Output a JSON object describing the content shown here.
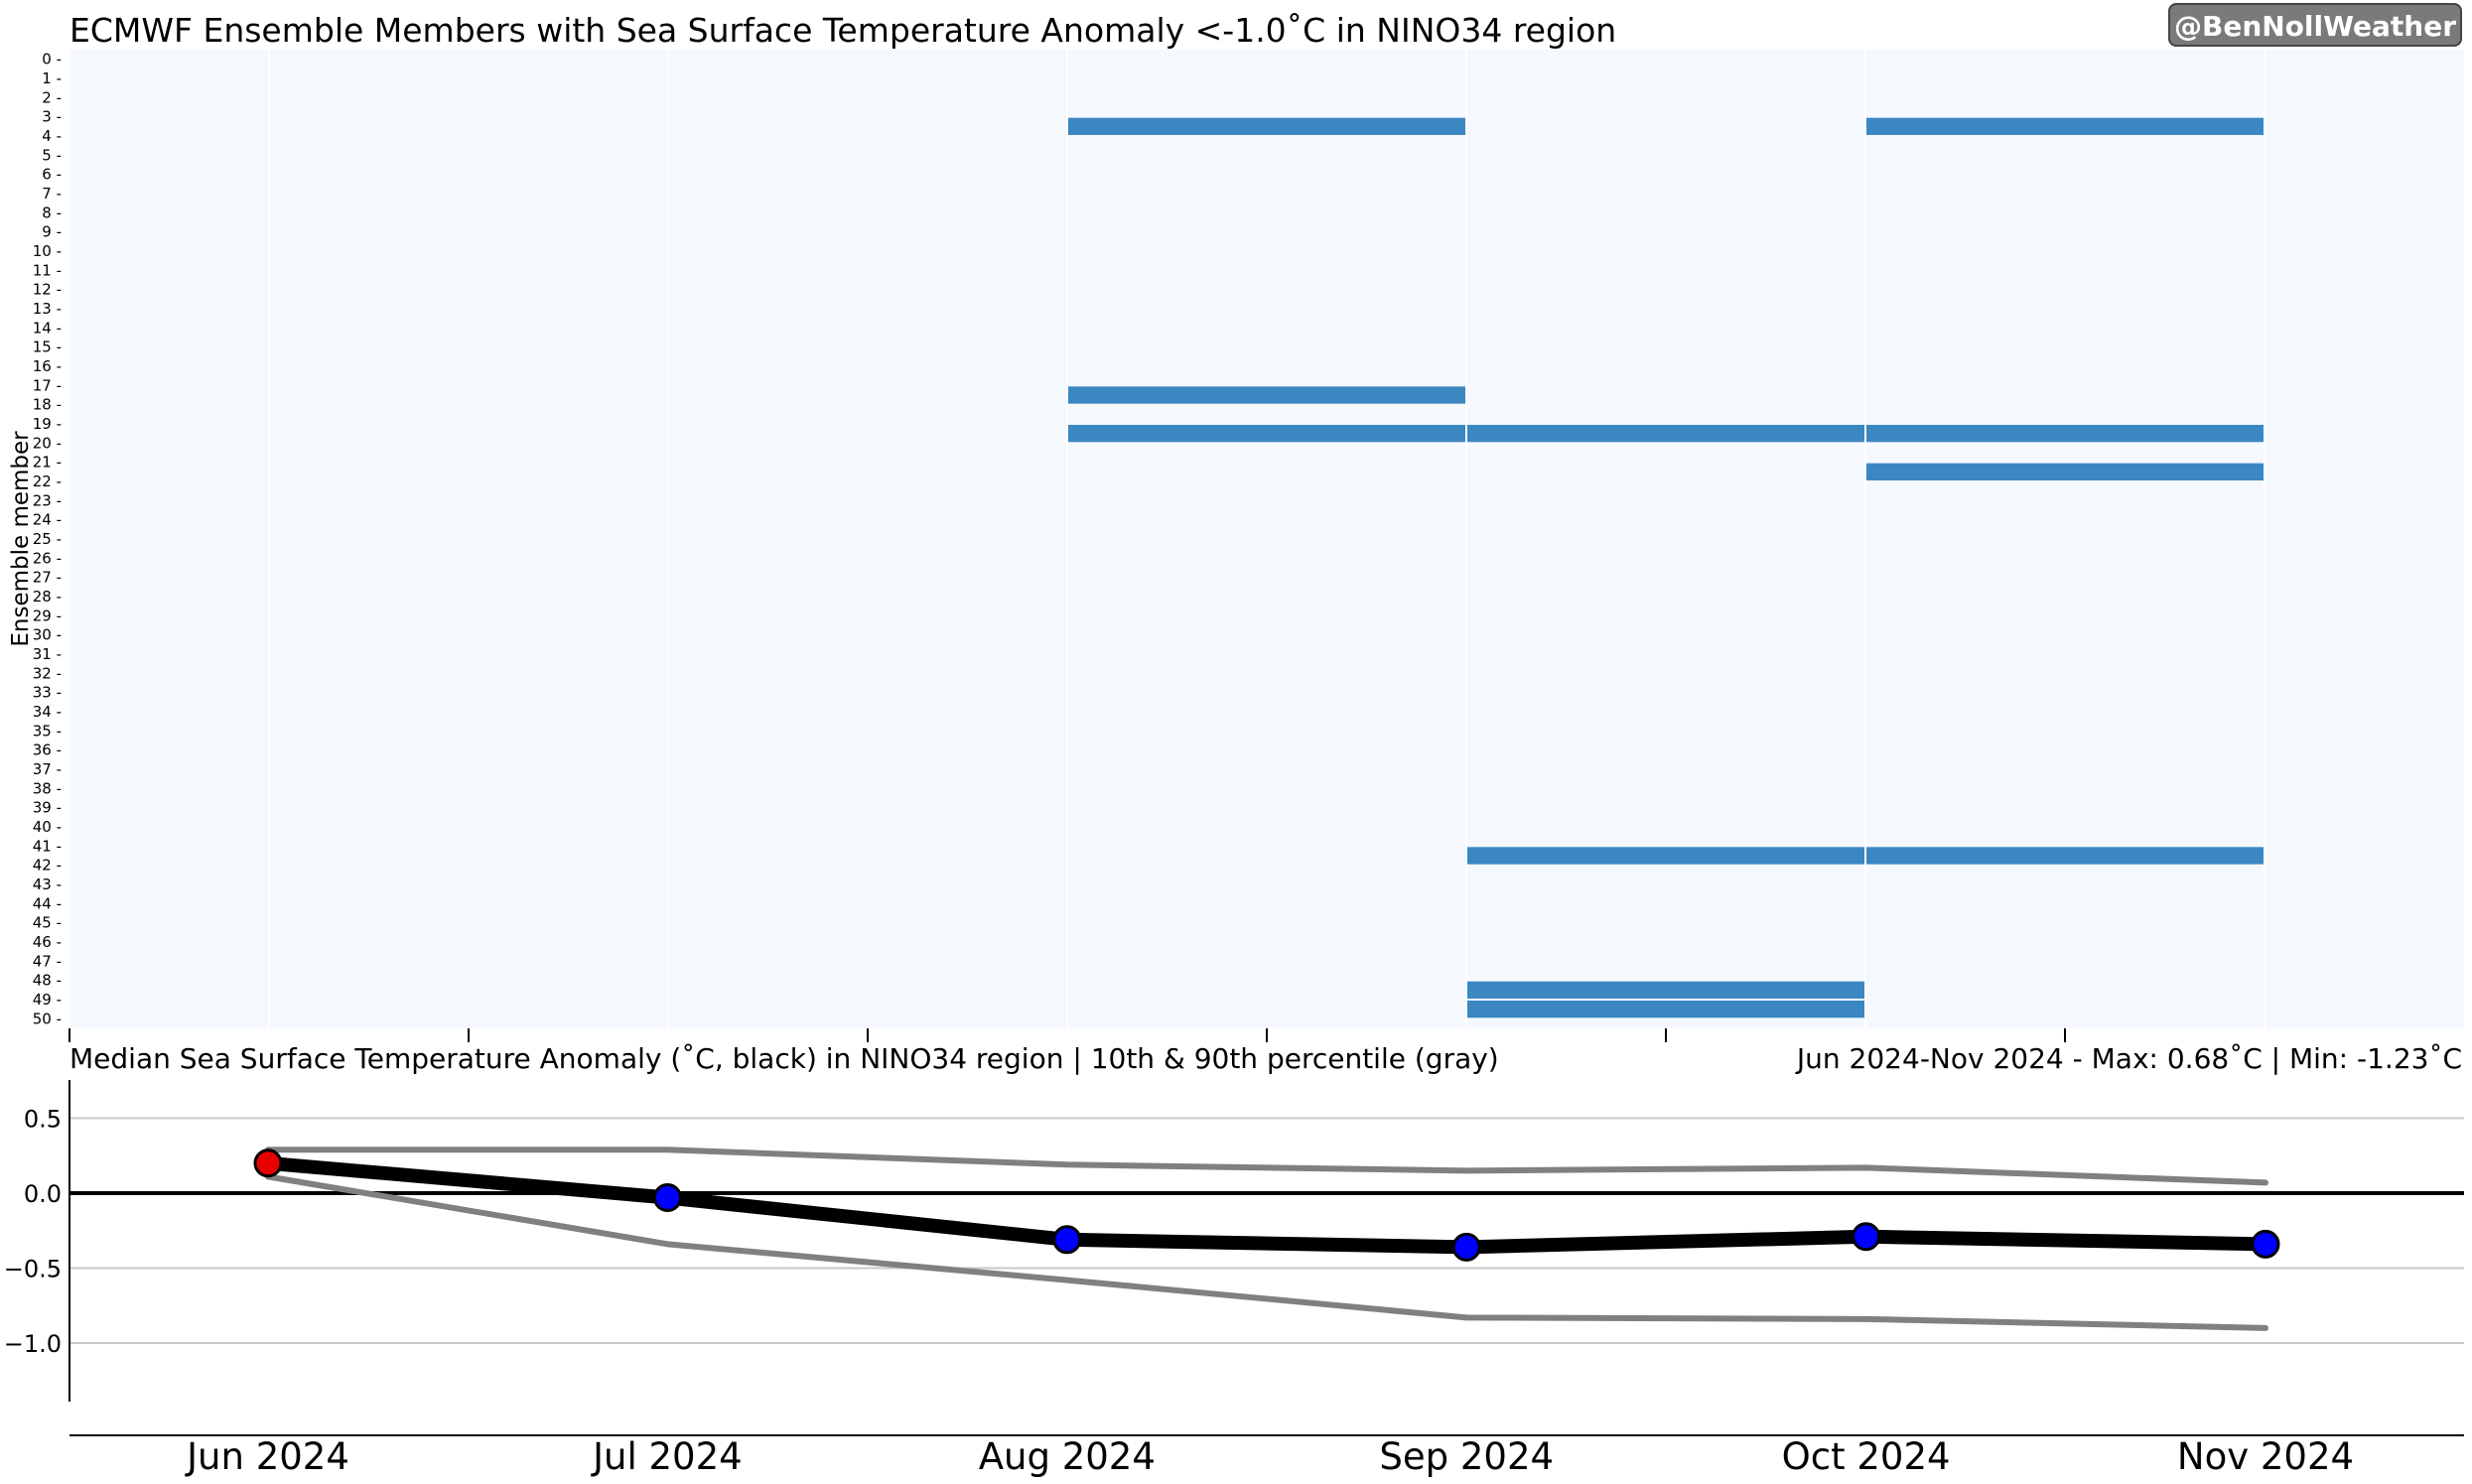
{
  "badge": "@BenNollWeather",
  "chart_data": [
    {
      "type": "heatmap",
      "title": "ECMWF Ensemble Members with Sea Surface Temperature Anomaly <-1.0˚C in NINO34 region",
      "ylabel": "Ensemble member",
      "categories": [
        "Jun 2024",
        "Jul 2024",
        "Aug 2024",
        "Sep 2024",
        "Oct 2024",
        "Nov 2024"
      ],
      "members": [
        0,
        1,
        2,
        3,
        4,
        5,
        6,
        7,
        8,
        9,
        10,
        11,
        12,
        13,
        14,
        15,
        16,
        17,
        18,
        19,
        20,
        21,
        22,
        23,
        24,
        25,
        26,
        27,
        28,
        29,
        30,
        31,
        32,
        33,
        34,
        35,
        36,
        37,
        38,
        39,
        40,
        41,
        42,
        43,
        44,
        45,
        46,
        47,
        48,
        49,
        50
      ],
      "highlighted": [
        {
          "member": 3,
          "months": [
            "Sep 2024",
            "Nov 2024"
          ]
        },
        {
          "member": 17,
          "months": [
            "Sep 2024"
          ]
        },
        {
          "member": 19,
          "months": [
            "Sep 2024",
            "Oct 2024",
            "Nov 2024"
          ]
        },
        {
          "member": 21,
          "months": [
            "Nov 2024"
          ]
        },
        {
          "member": 41,
          "months": [
            "Oct 2024",
            "Nov 2024"
          ]
        },
        {
          "member": 48,
          "months": [
            "Oct 2024"
          ]
        },
        {
          "member": 49,
          "months": [
            "Oct 2024"
          ]
        }
      ],
      "colors": {
        "on": "#3a87c2",
        "off": "#f5f9fe"
      }
    },
    {
      "type": "line",
      "title": "Median Sea Surface Temperature Anomaly (˚C, black) in NINO34 region | 10th & 90th percentile (gray)",
      "subtitle": "Jun 2024-Nov 2024 - Max: 0.68˚C | Min: -1.23˚C",
      "categories": [
        "Jun 2024",
        "Jul 2024",
        "Aug 2024",
        "Sep 2024",
        "Oct 2024",
        "Nov 2024"
      ],
      "yticks": [
        0.5,
        0.0,
        -0.5,
        -1.0
      ],
      "ytick_labels": [
        "0.5",
        "0.0",
        "−0.5",
        "−1.0"
      ],
      "ylim": [
        -1.4,
        0.8
      ],
      "series": [
        {
          "role": "median",
          "color": "#000000",
          "values": [
            0.2,
            -0.03,
            -0.31,
            -0.36,
            -0.29,
            -0.34
          ]
        },
        {
          "role": "p90",
          "color": "#808080",
          "values": [
            0.29,
            0.29,
            0.19,
            0.15,
            0.17,
            0.07
          ]
        },
        {
          "role": "p10",
          "color": "#808080",
          "values": [
            0.11,
            -0.34,
            -0.58,
            -0.83,
            -0.84,
            -0.9
          ]
        }
      ],
      "marker_colors": [
        "#e80000",
        "#0000ff",
        "#0000ff",
        "#0000ff",
        "#0000ff",
        "#0000ff"
      ],
      "grid": true
    }
  ]
}
